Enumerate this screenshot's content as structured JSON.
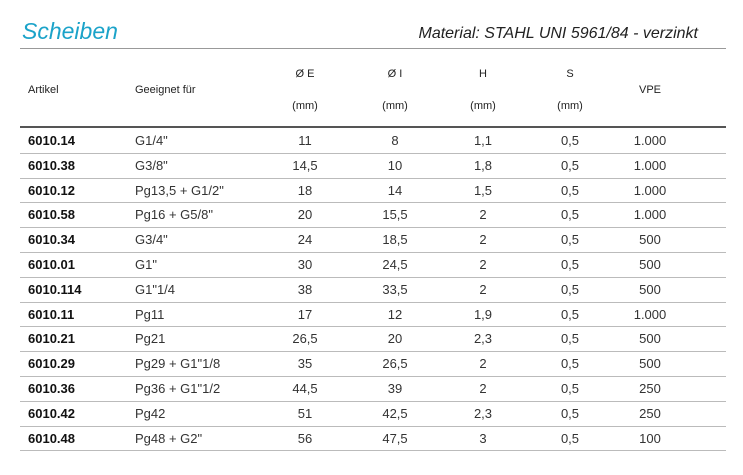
{
  "header": {
    "title": "Scheiben",
    "material": "Material: STAHL UNI 5961/84 - verzinkt"
  },
  "table": {
    "columns": [
      {
        "label": "Artikel"
      },
      {
        "label": "Geeignet für"
      },
      {
        "label": "Ø E",
        "unit": "(mm)"
      },
      {
        "label": "Ø I",
        "unit": "(mm)"
      },
      {
        "label": "H",
        "unit": "(mm)"
      },
      {
        "label": "S",
        "unit": "(mm)"
      },
      {
        "label": "VPE"
      }
    ],
    "rows": [
      [
        "6010.14",
        "G1/4\"",
        "11",
        "8",
        "1,1",
        "0,5",
        "1.000"
      ],
      [
        "6010.38",
        "G3/8\"",
        "14,5",
        "10",
        "1,8",
        "0,5",
        "1.000"
      ],
      [
        "6010.12",
        "Pg13,5 + G1/2\"",
        "18",
        "14",
        "1,5",
        "0,5",
        "1.000"
      ],
      [
        "6010.58",
        "Pg16 + G5/8\"",
        "20",
        "15,5",
        "2",
        "0,5",
        "1.000"
      ],
      [
        "6010.34",
        "G3/4\"",
        "24",
        "18,5",
        "2",
        "0,5",
        "500"
      ],
      [
        "6010.01",
        "G1\"",
        "30",
        "24,5",
        "2",
        "0,5",
        "500"
      ],
      [
        "6010.114",
        "G1\"1/4",
        "38",
        "33,5",
        "2",
        "0,5",
        "500"
      ],
      [
        "6010.11",
        "Pg11",
        "17",
        "12",
        "1,9",
        "0,5",
        "1.000"
      ],
      [
        "6010.21",
        "Pg21",
        "26,5",
        "20",
        "2,3",
        "0,5",
        "500"
      ],
      [
        "6010.29",
        "Pg29 + G1\"1/8",
        "35",
        "26,5",
        "2",
        "0,5",
        "500"
      ],
      [
        "6010.36",
        "Pg36 + G1\"1/2",
        "44,5",
        "39",
        "2",
        "0,5",
        "250"
      ],
      [
        "6010.42",
        "Pg42",
        "51",
        "42,5",
        "2,3",
        "0,5",
        "250"
      ],
      [
        "6010.48",
        "Pg48 + G2\"",
        "56",
        "47,5",
        "3",
        "0,5",
        "100"
      ]
    ]
  }
}
